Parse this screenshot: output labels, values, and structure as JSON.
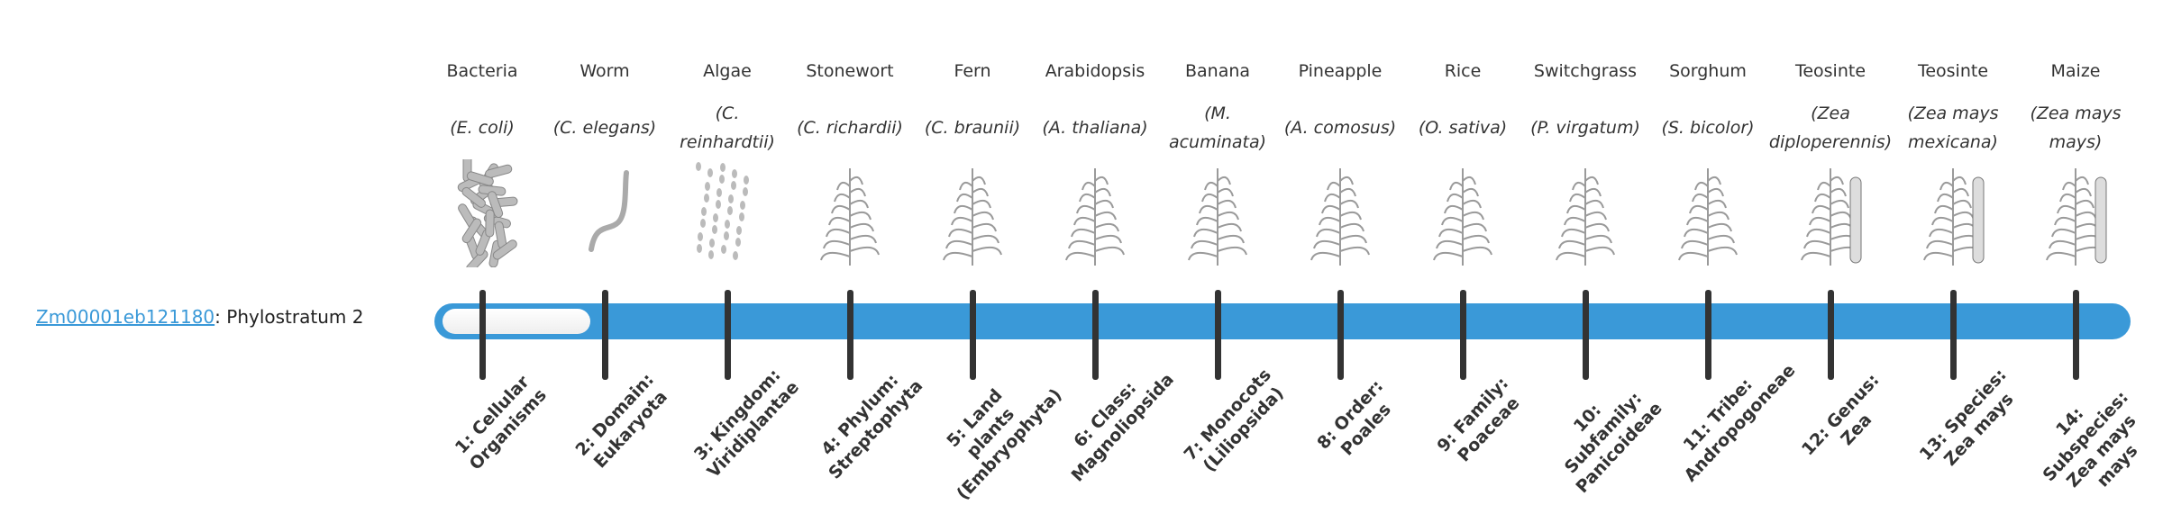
{
  "gene": {
    "id": "Zm00001eb121180",
    "suffix": ": Phylostratum 2"
  },
  "phylostratum": 2,
  "colors": {
    "bar": "#3a99d8",
    "tick": "#333333",
    "link": "#3a99d8"
  },
  "organisms": [
    {
      "common": "Bacteria",
      "sci": "(E. coli)",
      "icon": "bacteria-icon",
      "stratum": "1: Cellular Organisms"
    },
    {
      "common": "Worm",
      "sci": "(C. elegans)",
      "icon": "worm-icon",
      "stratum": "2: Domain: Eukaryota"
    },
    {
      "common": "Algae",
      "sci": "(C. reinhardtii)",
      "icon": "algae-icon",
      "stratum": "3: Kingdom: Viridiplantae"
    },
    {
      "common": "Stonewort",
      "sci": "(C. richardii)",
      "icon": "stonewort-icon",
      "stratum": "4: Phylum: Streptophyta"
    },
    {
      "common": "Fern",
      "sci": "(C. braunii)",
      "icon": "fern-icon",
      "stratum": "5: Land plants (Embryophyta)"
    },
    {
      "common": "Arabidopsis",
      "sci": "(A. thaliana)",
      "icon": "arabidopsis-icon",
      "stratum": "6: Class: Magnoliopsida"
    },
    {
      "common": "Banana",
      "sci": "(M. acuminata)",
      "icon": "banana-icon",
      "stratum": "7: Monocots (Liliopsida)"
    },
    {
      "common": "Pineapple",
      "sci": "(A. comosus)",
      "icon": "pineapple-icon",
      "stratum": "8: Order: Poales"
    },
    {
      "common": "Rice",
      "sci": "(O. sativa)",
      "icon": "rice-icon",
      "stratum": "9: Family: Poaceae"
    },
    {
      "common": "Switchgrass",
      "sci": "(P. virgatum)",
      "icon": "switchgrass-icon",
      "stratum": "10: Subfamily: Panicoideae"
    },
    {
      "common": "Sorghum",
      "sci": "(S. bicolor)",
      "icon": "sorghum-icon",
      "stratum": "11: Tribe: Andropogoneae"
    },
    {
      "common": "Teosinte",
      "sci": "(Zea diploperennis)",
      "icon": "teosinte-icon",
      "stratum": "12: Genus: Zea"
    },
    {
      "common": "Teosinte",
      "sci": "(Zea mays mexicana)",
      "icon": "teosinte-icon",
      "stratum": "13: Species: Zea mays"
    },
    {
      "common": "Maize",
      "sci": "(Zea mays mays)",
      "icon": "maize-icon",
      "stratum": "14: Subspecies: Zea mays mays"
    }
  ]
}
